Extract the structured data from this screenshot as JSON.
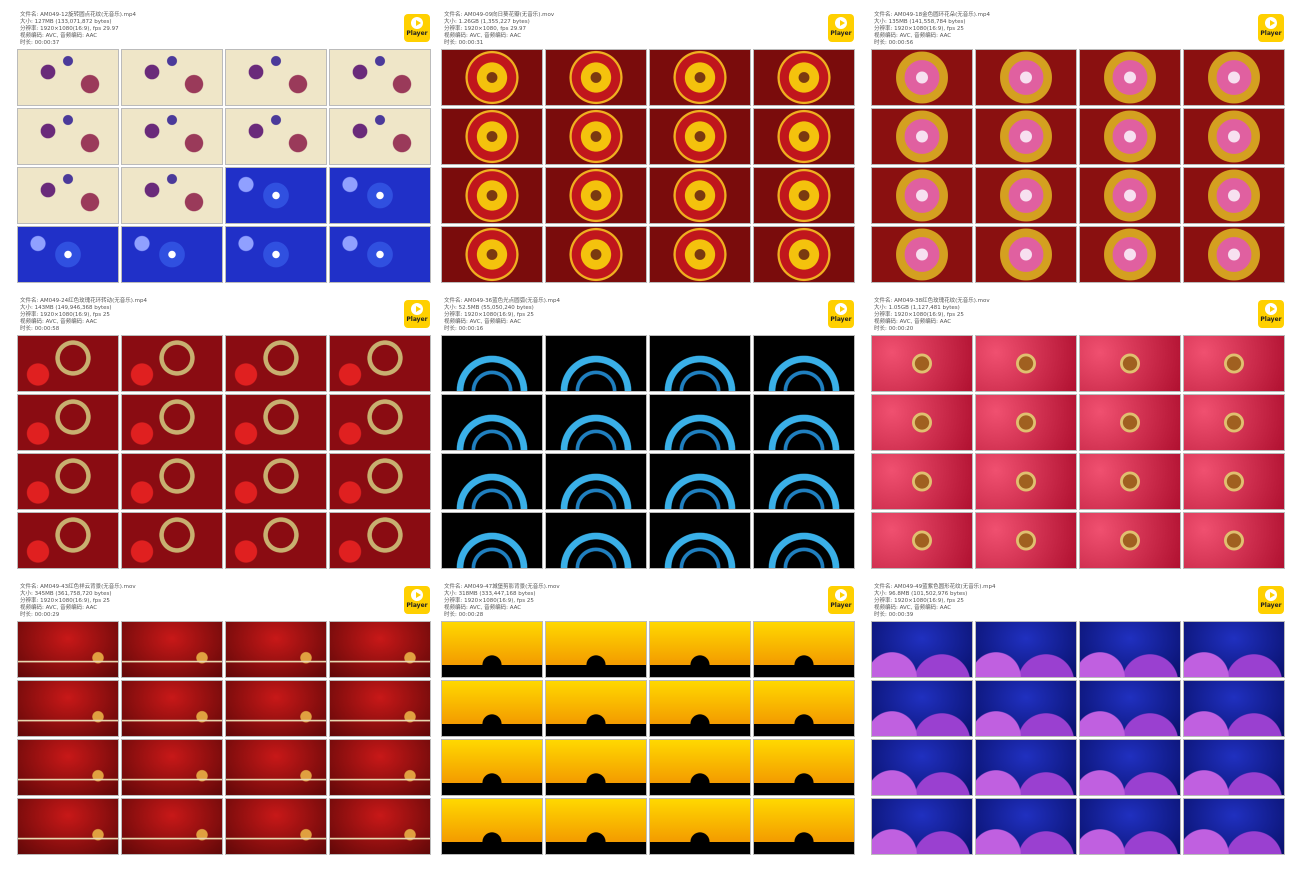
{
  "sheets": [
    {
      "header": [
        "文件名: AM049-12旋转圆点花纹(无音乐).mp4",
        "大小: 127MB (133,071,872 bytes)",
        "分辨率: 1920×1080(16:9), fps 29.97",
        "视频编码: AVC, 音频编码: AAC",
        "时长: 00:00:37"
      ],
      "player": "Player"
    },
    {
      "header": [
        "文件名: AM049-09向日葵花瓣(无音乐).mov",
        "大小: 1.26GB (1,355,227 bytes)",
        "分辨率: 1920×1080, fps 29.97",
        "视频编码: AVC, 音频编码: AAC",
        "时长: 00:00:31"
      ],
      "player": "Player"
    },
    {
      "header": [
        "文件名: AM049-18金色圆环花朵(无音乐).mp4",
        "大小: 135MB (141,558,784 bytes)",
        "分辨率: 1920×1080(16:9), fps 25",
        "视频编码: AVC, 音频编码: AAC",
        "时长: 00:00:56"
      ],
      "player": "Player"
    },
    {
      "header": [
        "文件名: AM049-24红色玫瑰花环转动(无音乐).mp4",
        "大小: 143MB (149,946,368 bytes)",
        "分辨率: 1920×1080(16:9), fps 25",
        "视频编码: AVC, 音频编码: AAC",
        "时长: 00:00:58"
      ],
      "player": "Player"
    },
    {
      "header": [
        "文件名: AM049-36蓝色光点圆弧(无音乐).mp4",
        "大小: 52.5MB (55,050,240 bytes)",
        "分辨率: 1920×1080(16:9), fps 25",
        "视频编码: AVC, 音频编码: AAC",
        "时长: 00:00:16"
      ],
      "player": "Player"
    },
    {
      "header": [
        "文件名: AM049-38红色玫瑰花纹(无音乐).mov",
        "大小: 1.05GB (1,127,481 bytes)",
        "分辨率: 1920×1080(16:9), fps 25",
        "视频编码: AVC, 音频编码: AAC",
        "时长: 00:00:20"
      ],
      "player": "Player"
    },
    {
      "header": [
        "文件名: AM049-43红色祥云背景(无音乐).mov",
        "大小: 345MB (361,758,720 bytes)",
        "分辨率: 1920×1080(16:9), fps 25",
        "视频编码: AVC, 音频编码: AAC",
        "时长: 00:00:29"
      ],
      "player": "Player"
    },
    {
      "header": [
        "文件名: AM049-47城堡剪影背景(无音乐).mov",
        "大小: 318MB (333,447,168 bytes)",
        "分辨率: 1920×1080(16:9), fps 25",
        "视频编码: AVC, 音频编码: AAC",
        "时长: 00:00:28"
      ],
      "player": "Player"
    },
    {
      "header": [
        "文件名: AM049-49蓝紫色圆形花纹(无音乐).mp4",
        "大小: 96.8MB (101,502,976 bytes)",
        "分辨率: 1920×1080(16:9), fps 25",
        "视频编码: AVC, 音频编码: AAC",
        "时长: 00:00:39"
      ],
      "player": "Player"
    }
  ]
}
